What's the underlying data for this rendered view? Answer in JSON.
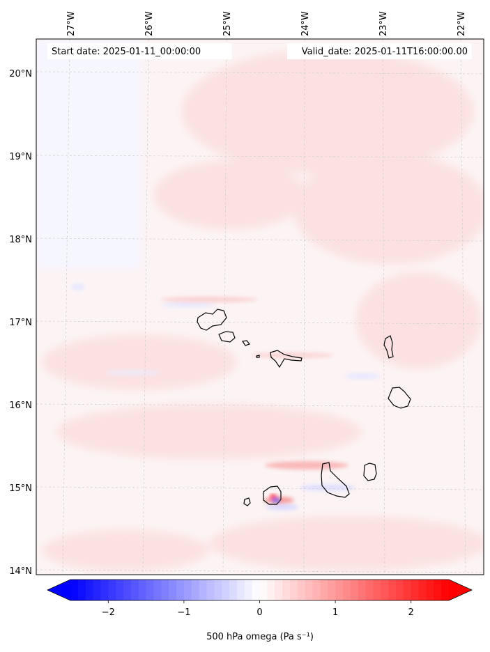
{
  "map": {
    "start_label": "Start date: 2025-01-11_00:00:00",
    "valid_label": "Valid_date: 2025-01-11T16:00:00.00",
    "lon_ticks": [
      "27°W",
      "26°W",
      "25°W",
      "24°W",
      "23°W",
      "22°W"
    ],
    "lat_ticks": [
      "20°N",
      "19°N",
      "18°N",
      "17°N",
      "16°N",
      "15°N",
      "14°N"
    ],
    "region": "Cape Verde islands",
    "field": "500 hPa omega"
  },
  "colorbar": {
    "label": "500 hPa omega (Pa s⁻¹)",
    "ticks": [
      "−2",
      "−1",
      "0",
      "1",
      "2"
    ],
    "tick_values": [
      -2,
      -1,
      0,
      1,
      2
    ],
    "range": [
      -2.5,
      2.5
    ],
    "extend": "both",
    "colors": {
      "min": "#0000ff",
      "mid": "#ffffff",
      "max": "#ff0000"
    }
  },
  "colors": {
    "background_tint": "#fde8e8",
    "coastline": "#000000",
    "gridline": "#cccccc"
  }
}
